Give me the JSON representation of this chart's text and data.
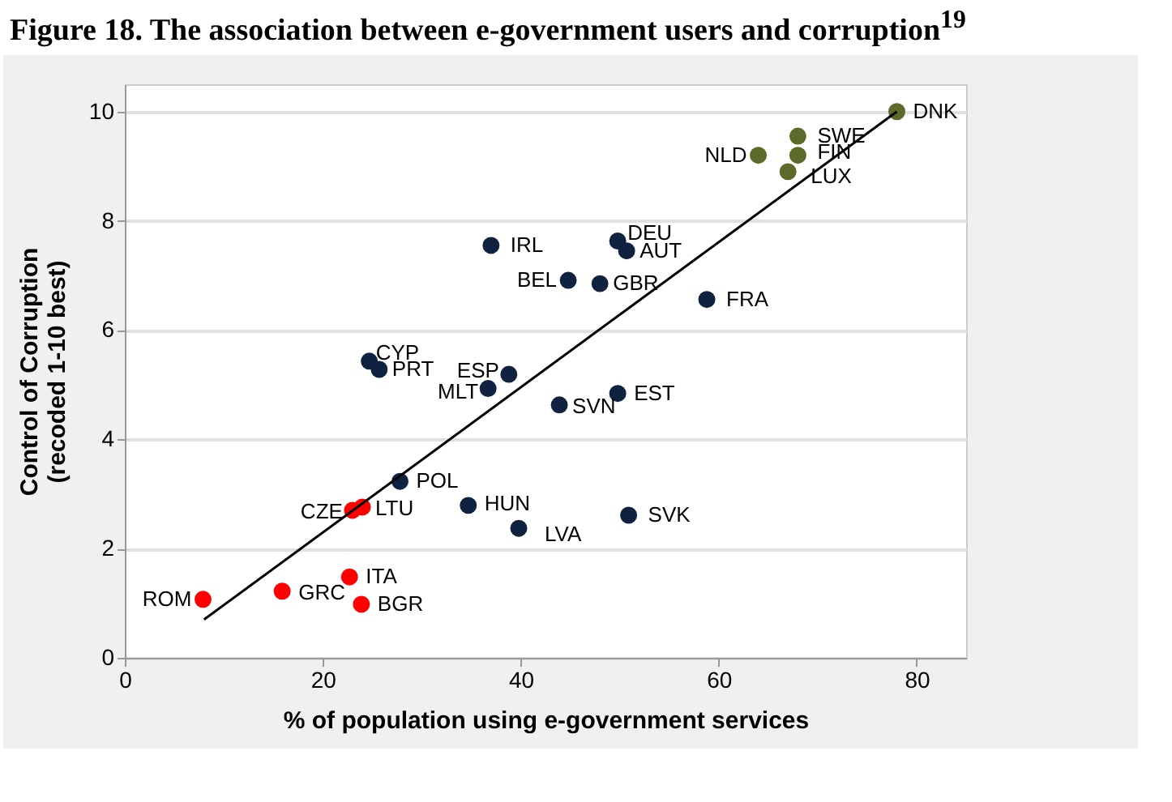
{
  "chart_data": {
    "type": "scatter",
    "title": "Figure 18. The association between e-government users and corruption$^{19}$",
    "xlabel": "% of population using e-government services",
    "ylabel": "Control of Corruption\n(recoded 1-10 best)",
    "xlim": [
      0,
      85
    ],
    "xticks": [
      0,
      20,
      40,
      60,
      80
    ],
    "ylim": [
      0,
      10.5
    ],
    "yticks": [
      0,
      2,
      4,
      6,
      8,
      10
    ],
    "grid": "y",
    "marker": "circle",
    "series": [
      {
        "color": "#5c6b2a",
        "x": [
          78,
          68,
          68,
          64,
          67
        ],
        "values": [
          10.0,
          9.55,
          9.2,
          9.2,
          8.9
        ]
      },
      {
        "color": "#0f2340",
        "x": [
          37,
          49.8,
          50.7,
          44.8,
          48,
          58.8,
          24.7,
          25.7,
          38.8,
          36.7,
          43.9,
          49.8,
          27.8,
          34.7,
          39.8,
          50.9
        ],
        "values": [
          7.55,
          7.63,
          7.45,
          6.91,
          6.85,
          6.56,
          5.43,
          5.28,
          5.19,
          4.93,
          4.63,
          4.84,
          3.23,
          2.79,
          2.37,
          2.61
        ]
      },
      {
        "color": "#ff0000",
        "x": [
          23,
          24,
          22.7,
          15.9,
          23.9,
          7.9
        ],
        "values": [
          2.7,
          2.76,
          1.48,
          1.22,
          0.98,
          1.07
        ]
      },
      {
        "type": "line",
        "marker": "none",
        "color": "#000000",
        "x": [
          8,
          78
        ],
        "values": [
          0.7,
          10.0
        ]
      }
    ],
    "annotations": [
      {
        "text": "DNK",
        "x": 78,
        "y": 10.0
      },
      {
        "text": "SWE",
        "x": 68,
        "y": 9.55
      },
      {
        "text": "FIN",
        "x": 68,
        "y": 9.2
      },
      {
        "text": "NLD",
        "x": 64,
        "y": 9.2
      },
      {
        "text": "LUX",
        "x": 67,
        "y": 8.9
      },
      {
        "text": "IRL",
        "x": 37,
        "y": 7.55
      },
      {
        "text": "DEU",
        "x": 49.8,
        "y": 7.63
      },
      {
        "text": "AUT",
        "x": 50.7,
        "y": 7.45
      },
      {
        "text": "BEL",
        "x": 44.8,
        "y": 6.91
      },
      {
        "text": "GBR",
        "x": 48,
        "y": 6.85
      },
      {
        "text": "FRA",
        "x": 58.8,
        "y": 6.56
      },
      {
        "text": "CYP",
        "x": 24.7,
        "y": 5.43
      },
      {
        "text": "PRT",
        "x": 25.7,
        "y": 5.28
      },
      {
        "text": "ESP",
        "x": 38.8,
        "y": 5.19
      },
      {
        "text": "MLT",
        "x": 36.7,
        "y": 4.93
      },
      {
        "text": "SVN",
        "x": 43.9,
        "y": 4.63
      },
      {
        "text": "EST",
        "x": 49.8,
        "y": 4.84
      },
      {
        "text": "POL",
        "x": 27.8,
        "y": 3.23
      },
      {
        "text": "HUN",
        "x": 34.7,
        "y": 2.79
      },
      {
        "text": "LVA",
        "x": 39.8,
        "y": 2.37
      },
      {
        "text": "SVK",
        "x": 50.9,
        "y": 2.61
      },
      {
        "text": "CZE",
        "x": 23,
        "y": 2.7
      },
      {
        "text": "LTU",
        "x": 24,
        "y": 2.76
      },
      {
        "text": "ITA",
        "x": 22.7,
        "y": 1.48
      },
      {
        "text": "GRC",
        "x": 15.9,
        "y": 1.22
      },
      {
        "text": "BGR",
        "x": 23.9,
        "y": 0.98
      },
      {
        "text": "ROM",
        "x": 7.9,
        "y": 1.07
      }
    ]
  }
}
